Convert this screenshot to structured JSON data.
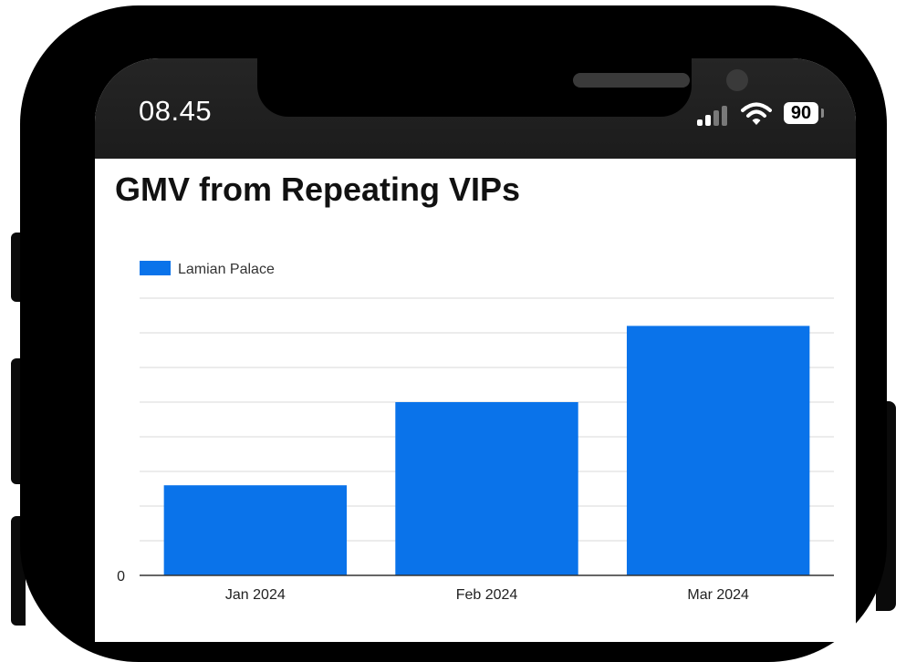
{
  "status_bar": {
    "time": "08.45",
    "battery_level": "90",
    "signal_bars_active": 2,
    "signal_bars_total": 4,
    "icons": [
      "cellular-signal-icon",
      "wifi-icon",
      "battery-icon"
    ]
  },
  "colors": {
    "bar": "#0a73ea",
    "gridline": "#dadada",
    "axis": "#333333",
    "status_bar_bg": "#1f1f1f"
  },
  "chart_data": {
    "type": "bar",
    "title": "GMV from Repeating VIPs",
    "legend": {
      "position": "top-left"
    },
    "categories": [
      "Jan 2024",
      "Feb 2024",
      "Mar 2024"
    ],
    "series": [
      {
        "name": "Lamian Palace",
        "values": [
          2.6,
          5.0,
          7.2
        ]
      }
    ],
    "ylim": [
      0,
      8
    ],
    "y_ticks": [
      "0"
    ],
    "grid": true,
    "grid_lines": 8
  }
}
